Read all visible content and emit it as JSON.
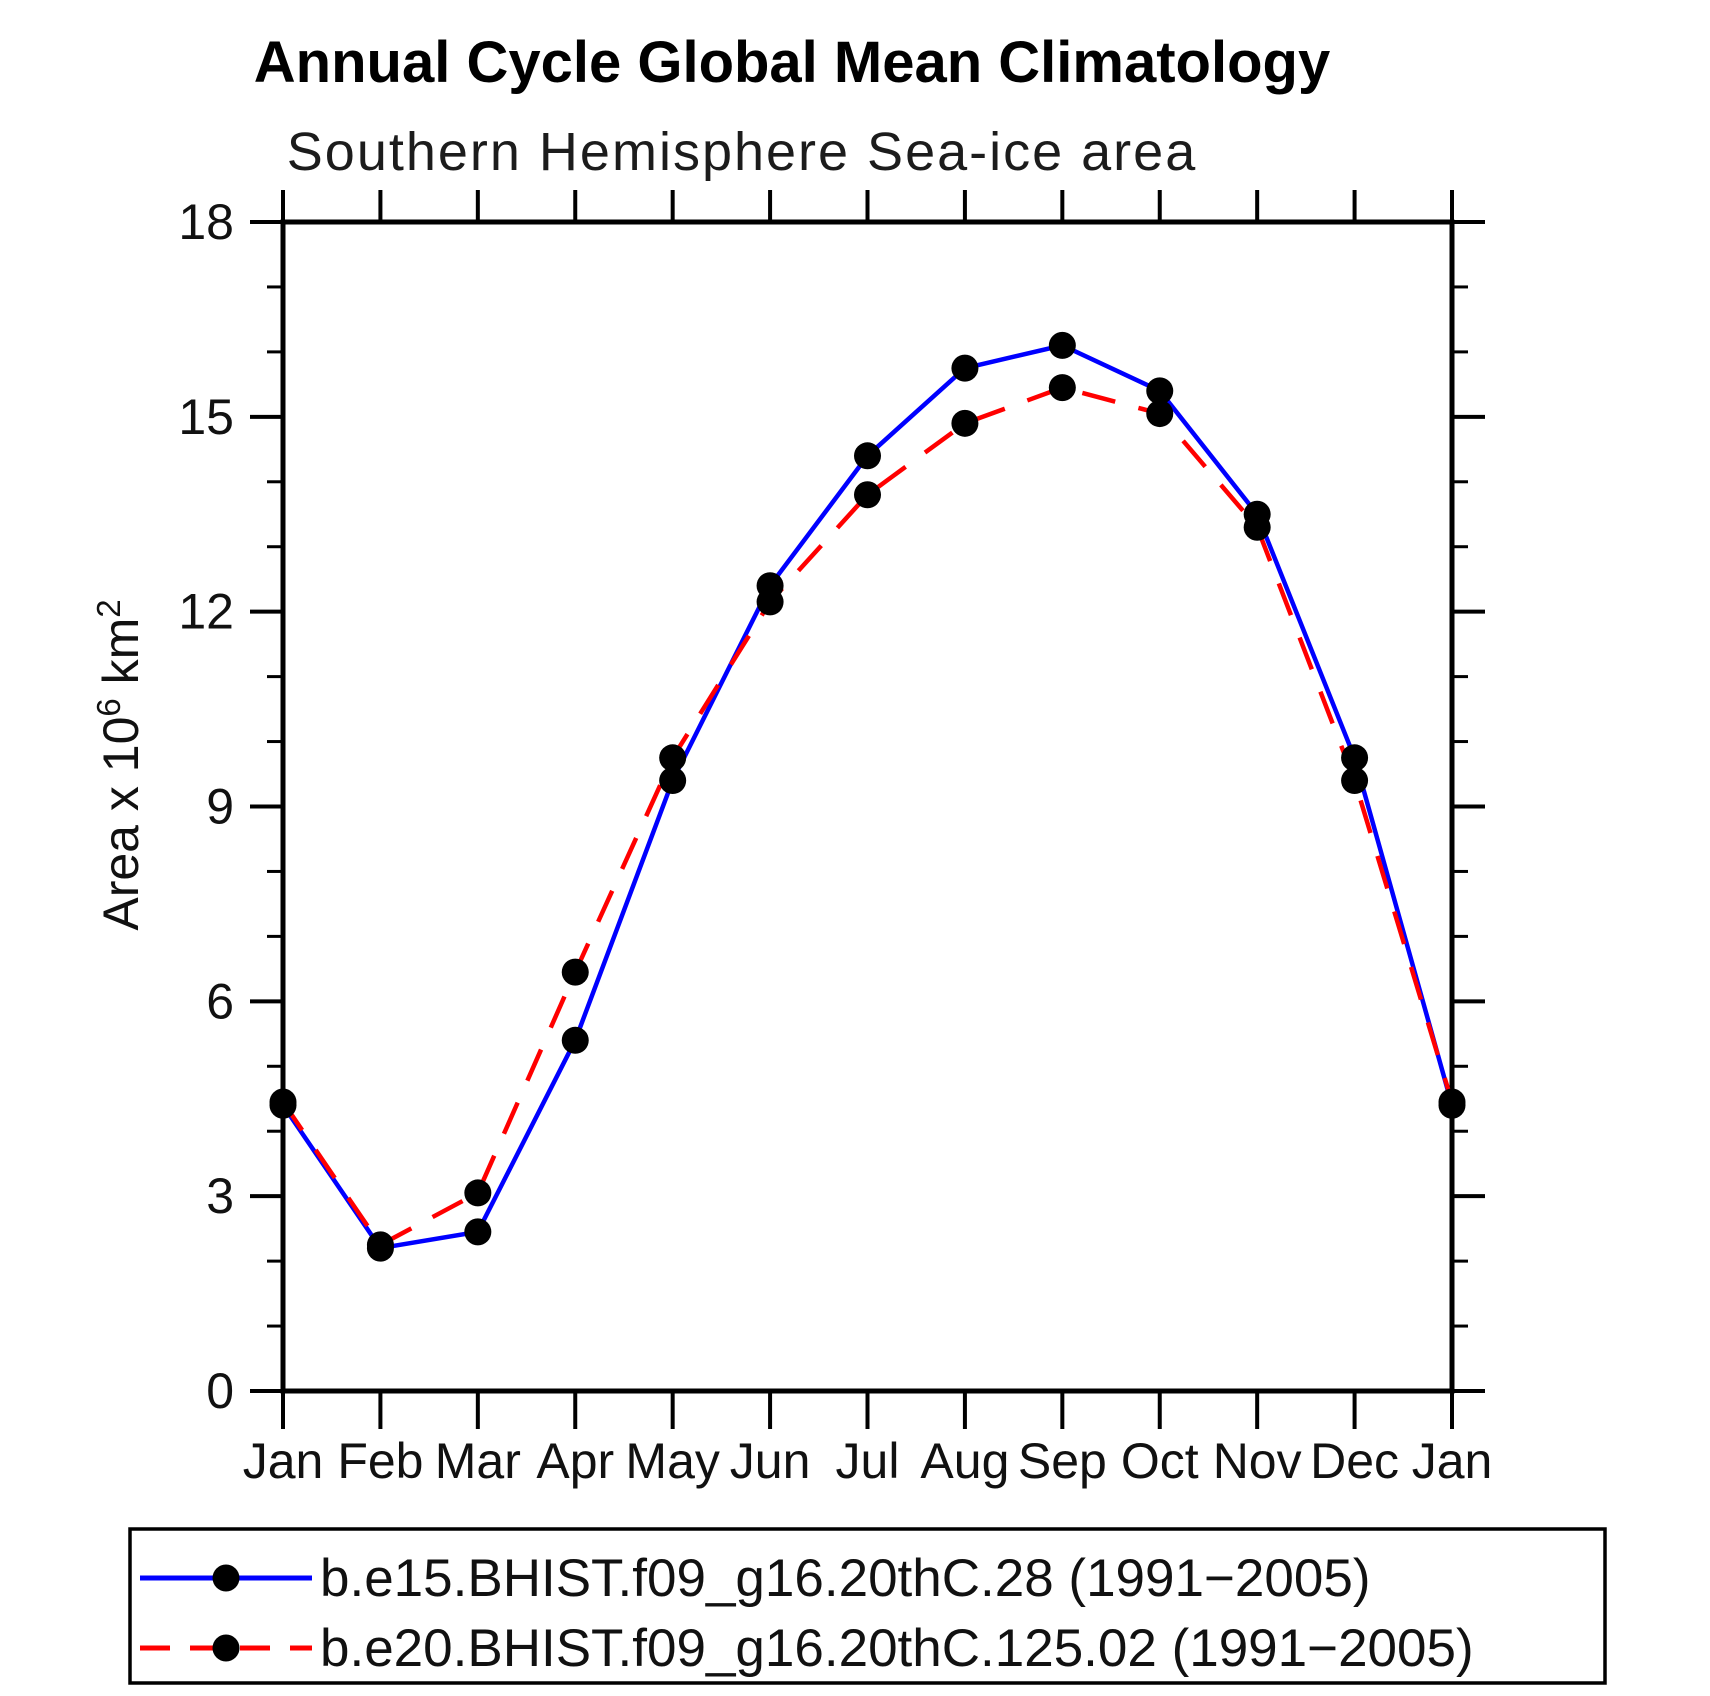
{
  "colors": {
    "background": "#ffffff",
    "axis": "#000000",
    "series_blue": "#0000ff",
    "series_red": "#ff0000",
    "marker": "#000000"
  },
  "chart_data": {
    "type": "line",
    "title": "Annual Cycle Global Mean Climatology",
    "subtitle": "Southern Hemisphere Sea-ice area",
    "ylabel": "Area x 10⁶ km²",
    "ylabel_parts": [
      {
        "t": "Area x 10",
        "sup": false
      },
      {
        "t": "6",
        "sup": true
      },
      {
        "t": " km",
        "sup": false
      },
      {
        "t": "2",
        "sup": true
      }
    ],
    "categories": [
      "Jan",
      "Feb",
      "Mar",
      "Apr",
      "May",
      "Jun",
      "Jul",
      "Aug",
      "Sep",
      "Oct",
      "Nov",
      "Dec",
      "Jan"
    ],
    "ylim": [
      0,
      18
    ],
    "y_major_ticks": [
      0,
      3,
      6,
      9,
      12,
      15,
      18
    ],
    "y_minor_step": 1,
    "grid": false,
    "legend_position": "bottom",
    "series": [
      {
        "name": "b.e15.BHIST.f09_g16.20thC.28 (1991−2005)",
        "color": "#0000ff",
        "line_style": "solid",
        "marker": "filled-circle",
        "marker_color": "#000000",
        "values": [
          4.4,
          2.2,
          2.45,
          5.4,
          9.4,
          12.4,
          14.4,
          15.75,
          16.1,
          15.4,
          13.5,
          9.75,
          4.4
        ]
      },
      {
        "name": "b.e20.BHIST.f09_g16.20thC.125.02 (1991−2005)",
        "color": "#ff0000",
        "line_style": "dashed",
        "marker": "filled-circle",
        "marker_color": "#000000",
        "values": [
          4.45,
          2.25,
          3.05,
          6.45,
          9.75,
          12.15,
          13.8,
          14.9,
          15.45,
          15.05,
          13.3,
          9.4,
          4.45
        ]
      }
    ]
  }
}
